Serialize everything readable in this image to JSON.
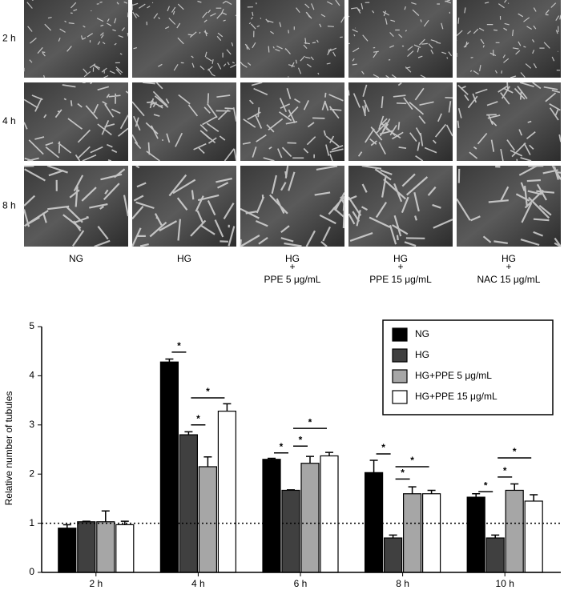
{
  "image_panel": {
    "row_labels": [
      "2 h",
      "4 h",
      "8 h"
    ],
    "column_labels": [
      [
        "NG"
      ],
      [
        "HG"
      ],
      [
        "HG",
        "+",
        "PPE 5 μg/mL"
      ],
      [
        "HG",
        "+",
        "PPE 15 μg/mL"
      ],
      [
        "HG",
        "+",
        "NAC 15 μg/mL"
      ]
    ]
  },
  "chart_data": {
    "type": "bar",
    "y_label": "Relative number of tubules",
    "categories": [
      "2 h",
      "4 h",
      "6 h",
      "8 h",
      "10 h"
    ],
    "series": [
      {
        "name": "NG",
        "color": "#000000",
        "values": [
          0.9,
          4.28,
          2.3,
          2.03,
          1.53
        ],
        "errors": [
          0.07,
          0.06,
          0.02,
          0.25,
          0.07
        ]
      },
      {
        "name": "HG",
        "color": "#404040",
        "values": [
          1.03,
          2.8,
          1.67,
          0.7,
          0.7
        ],
        "errors": [
          0.01,
          0.06,
          0.01,
          0.06,
          0.06
        ]
      },
      {
        "name": "HG+PPE 5  μg/mL",
        "color": "#a6a6a6",
        "values": [
          1.03,
          2.15,
          2.22,
          1.6,
          1.67
        ],
        "errors": [
          0.22,
          0.2,
          0.14,
          0.14,
          0.13
        ]
      },
      {
        "name": "HG+PPE 15  μg/mL",
        "color": "#ffffff",
        "values": [
          0.97,
          3.28,
          2.37,
          1.6,
          1.45
        ],
        "errors": [
          0.07,
          0.15,
          0.07,
          0.07,
          0.13
        ]
      }
    ],
    "ylim": [
      0,
      5
    ],
    "yticks": [
      0,
      1,
      2,
      3,
      4,
      5
    ],
    "reference_line": 1,
    "legend": "top-right",
    "significance": [
      {
        "category": 1,
        "pair": [
          0,
          1
        ],
        "y": 4.48,
        "label": "*"
      },
      {
        "category": 1,
        "pair": [
          1,
          3
        ],
        "y": 3.55,
        "label": "*"
      },
      {
        "category": 1,
        "pair": [
          1,
          2
        ],
        "y": 3.0,
        "label": "*"
      },
      {
        "category": 2,
        "pair": [
          0,
          1
        ],
        "y": 2.43,
        "label": "*"
      },
      {
        "category": 2,
        "pair": [
          1,
          2
        ],
        "y": 2.57,
        "label": "*"
      },
      {
        "category": 2,
        "pair": [
          1,
          3
        ],
        "y": 2.93,
        "label": "*"
      },
      {
        "category": 3,
        "pair": [
          0,
          1
        ],
        "y": 2.41,
        "label": "*"
      },
      {
        "category": 3,
        "pair": [
          1,
          2
        ],
        "y": 1.9,
        "label": "*"
      },
      {
        "category": 3,
        "pair": [
          1,
          3
        ],
        "y": 2.15,
        "label": "*"
      },
      {
        "category": 4,
        "pair": [
          0,
          1
        ],
        "y": 1.64,
        "label": "*"
      },
      {
        "category": 4,
        "pair": [
          1,
          2
        ],
        "y": 1.94,
        "label": "*"
      },
      {
        "category": 4,
        "pair": [
          1,
          3
        ],
        "y": 2.33,
        "label": "*"
      }
    ]
  }
}
